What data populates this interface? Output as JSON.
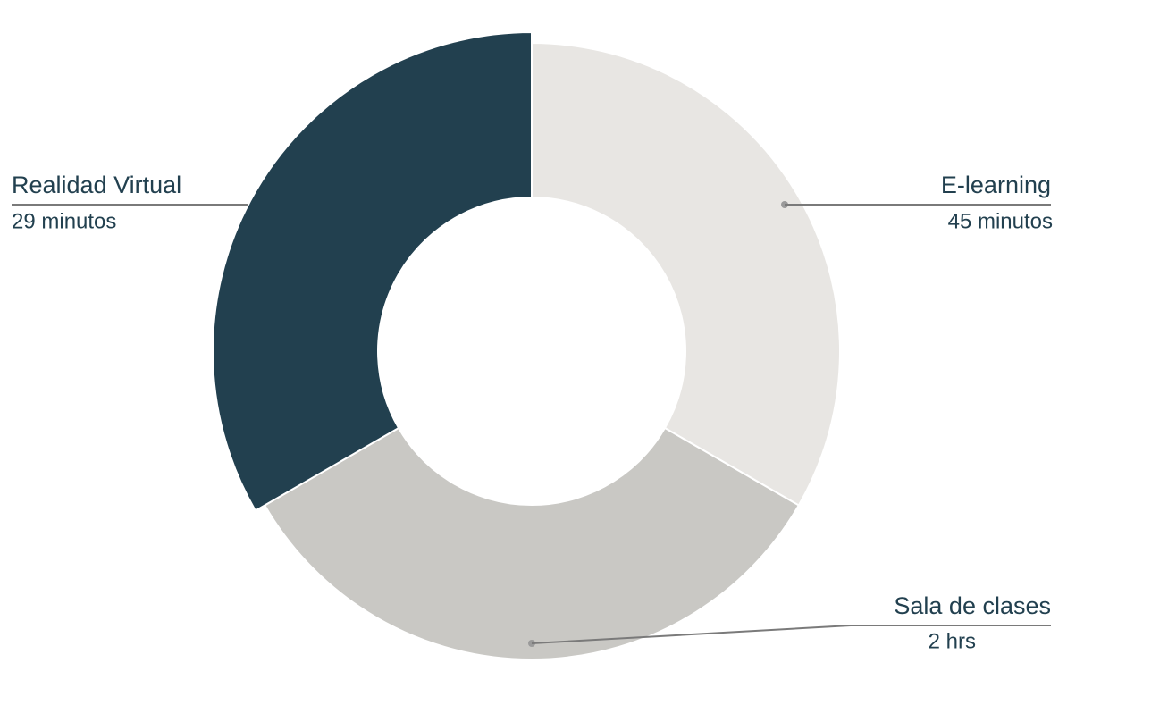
{
  "chart_data": {
    "type": "donut",
    "categories": [
      "E-learning",
      "Sala de clases",
      "Realidad Virtual"
    ],
    "values": [
      33.3,
      33.3,
      33.3
    ],
    "colors": [
      "#e8e6e3",
      "#c9c8c4",
      "#22404f"
    ],
    "annotations": [
      "45 minutos",
      "2 hrs",
      "29 minutos"
    ]
  }
}
